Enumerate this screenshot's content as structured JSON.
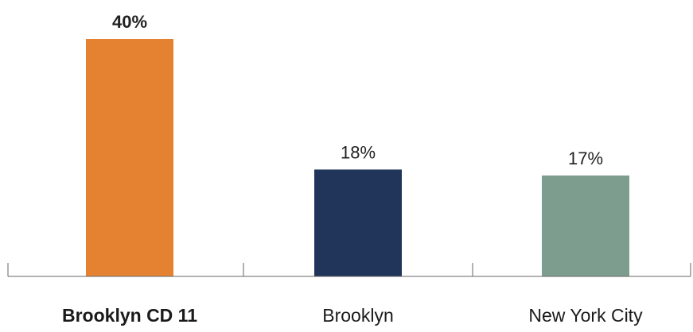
{
  "chart_data": {
    "type": "bar",
    "categories": [
      "Brooklyn CD 11",
      "Brooklyn",
      "New York City"
    ],
    "values": [
      40,
      18,
      17
    ],
    "value_labels": [
      "40%",
      "18%",
      "17%"
    ],
    "highlighted_category": "Brooklyn CD 11",
    "colors": [
      "#E58232",
      "#21345A",
      "#7D9E8E"
    ],
    "title": "",
    "xlabel": "",
    "ylabel": "",
    "ylim": [
      0,
      40
    ],
    "grid": false,
    "legend": "none"
  }
}
